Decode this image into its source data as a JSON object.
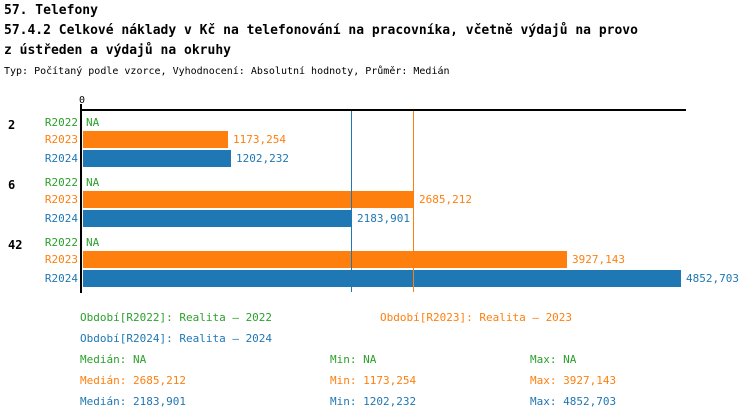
{
  "header": {
    "title": "57. Telefony",
    "subtitle_line1": "57.4.2 Celkové náklady v Kč na telefonování na pracovníka, včetně výdajů na provo",
    "subtitle_line2": "z ústředen a výdajů na okruhy",
    "meta": "Typ: Počítaný podle vzorce, Vyhodnocení: Absolutní hodnoty, Průměr: Medián"
  },
  "colors": {
    "r2022": "#2ca02c",
    "r2023": "#ff7f0e",
    "r2024": "#1f77b4",
    "axis": "#000000"
  },
  "chart_data": {
    "type": "bar",
    "orientation": "horizontal",
    "title": "57.4.2 Celkové náklady v Kč na telefonování na pracovníka, včetně výdajů na provoz ústředen a výdajů na okruhy",
    "xlabel": "",
    "ylabel": "",
    "xlim": [
      0,
      4900
    ],
    "grid": false,
    "x_ticks": [
      {
        "value": 0,
        "label": "0"
      }
    ],
    "categories": [
      "2",
      "6",
      "42"
    ],
    "series": [
      {
        "name": "R2022",
        "color_key": "r2022",
        "values": [
          null,
          null,
          null
        ],
        "displays": [
          "NA",
          "NA",
          "NA"
        ]
      },
      {
        "name": "R2023",
        "color_key": "r2023",
        "values": [
          1173.254,
          2685.212,
          3927.143
        ],
        "displays": [
          "1173,254",
          "2685,212",
          "3927,143"
        ]
      },
      {
        "name": "R2024",
        "color_key": "r2024",
        "values": [
          1202.232,
          2183.901,
          4852.703
        ],
        "displays": [
          "1202,232",
          "2183,901",
          "4852,703"
        ]
      }
    ],
    "median_lines": [
      {
        "series": "R2023",
        "value": 2685.212,
        "color_key": "r2023"
      },
      {
        "series": "R2024",
        "value": 2183.901,
        "color_key": "r2024"
      }
    ]
  },
  "legend": {
    "r2022": "Období[R2022]: Realita – 2022",
    "r2023": "Období[R2023]: Realita – 2023",
    "r2024": "Období[R2024]: Realita – 2024"
  },
  "stats": {
    "r2022": {
      "median": "Medián: NA",
      "min": "Min: NA",
      "max": "Max: NA"
    },
    "r2023": {
      "median": "Medián: 2685,212",
      "min": "Min: 1173,254",
      "max": "Max: 3927,143"
    },
    "r2024": {
      "median": "Medián: 2183,901",
      "min": "Min: 1202,232",
      "max": "Max: 4852,703"
    }
  }
}
